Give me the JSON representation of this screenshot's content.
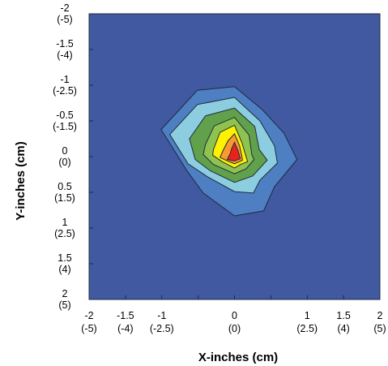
{
  "chart_data": {
    "type": "contour",
    "xlabel": "X-inches (cm)",
    "ylabel": "Y-inches (cm)",
    "xlim": [
      -2,
      2
    ],
    "ylim": [
      -2,
      2
    ],
    "y_axis_inverted": true,
    "grid": false,
    "legend": "none",
    "x_ticks": [
      {
        "value": -2,
        "inch": "-2",
        "cm": "(-5)"
      },
      {
        "value": -1.5,
        "inch": "-1.5",
        "cm": "(-4)"
      },
      {
        "value": -1,
        "inch": "-1",
        "cm": "(-2.5)"
      },
      {
        "value": -0.5,
        "inch": "",
        "cm": ""
      },
      {
        "value": 0,
        "inch": "0",
        "cm": "(0)"
      },
      {
        "value": 0.5,
        "inch": "",
        "cm": ""
      },
      {
        "value": 1,
        "inch": "1",
        "cm": "(2.5)"
      },
      {
        "value": 1.5,
        "inch": "1.5",
        "cm": "(4)"
      },
      {
        "value": 2,
        "inch": "2",
        "cm": "(5)"
      }
    ],
    "y_ticks": [
      {
        "value": -2,
        "inch": "-2",
        "cm": "(-5)"
      },
      {
        "value": -1.5,
        "inch": "-1.5",
        "cm": "(-4)"
      },
      {
        "value": -1,
        "inch": "-1",
        "cm": "(-2.5)"
      },
      {
        "value": -0.5,
        "inch": "-0.5",
        "cm": "(-1.5)"
      },
      {
        "value": 0,
        "inch": "0",
        "cm": "(0)"
      },
      {
        "value": 0.5,
        "inch": "0.5",
        "cm": "(1.5)"
      },
      {
        "value": 1,
        "inch": "1",
        "cm": "(2.5)"
      },
      {
        "value": 1.5,
        "inch": "1.5",
        "cm": "(4)"
      },
      {
        "value": 2,
        "inch": "2",
        "cm": "(5)"
      }
    ],
    "background_color": "#4059a0",
    "outline_color": "#1f2a3c",
    "contours": [
      {
        "level": 1,
        "color": "#4e7fc2",
        "points": [
          [
            -0.51,
            -0.93
          ],
          [
            0,
            -0.98
          ],
          [
            0.38,
            -0.66
          ],
          [
            0.68,
            -0.33
          ],
          [
            0.86,
            0.04
          ],
          [
            0.55,
            0.42
          ],
          [
            0.4,
            0.76
          ],
          [
            0,
            0.83
          ],
          [
            -0.43,
            0.51
          ],
          [
            -0.66,
            0.19
          ],
          [
            -1.01,
            -0.38
          ]
        ]
      },
      {
        "level": 2,
        "color": "#8ccde0",
        "points": [
          [
            -0.51,
            -0.73
          ],
          [
            0,
            -0.83
          ],
          [
            0.35,
            -0.5
          ],
          [
            0.55,
            -0.15
          ],
          [
            0.59,
            0.09
          ],
          [
            0.35,
            0.33
          ],
          [
            0.26,
            0.51
          ],
          [
            0,
            0.49
          ],
          [
            -0.36,
            0.29
          ],
          [
            -0.64,
            0.1
          ],
          [
            -0.89,
            -0.31
          ]
        ]
      },
      {
        "level": 3,
        "color": "#62a14b",
        "points": [
          [
            -0.4,
            -0.57
          ],
          [
            0,
            -0.68
          ],
          [
            0.28,
            -0.42
          ],
          [
            0.34,
            -0.1
          ],
          [
            0.45,
            0.05
          ],
          [
            0.25,
            0.27
          ],
          [
            0,
            0.36
          ],
          [
            -0.33,
            0.2
          ],
          [
            -0.54,
            0.04
          ],
          [
            -0.62,
            -0.25
          ]
        ]
      },
      {
        "level": 4,
        "color": "#8fc34f",
        "points": [
          [
            -0.28,
            -0.43
          ],
          [
            0,
            -0.55
          ],
          [
            0.2,
            -0.3
          ],
          [
            0.24,
            -0.02
          ],
          [
            0.27,
            0.04
          ],
          [
            0.16,
            0.17
          ],
          [
            0,
            0.24
          ],
          [
            -0.29,
            0.11
          ],
          [
            -0.43,
            -0.03
          ],
          [
            -0.4,
            -0.17
          ]
        ]
      },
      {
        "level": 5,
        "color": "#fff200",
        "points": [
          [
            -0.2,
            -0.34
          ],
          [
            0,
            -0.44
          ],
          [
            0.1,
            -0.2
          ],
          [
            0.15,
            -0.03
          ],
          [
            0.18,
            0.07
          ],
          [
            0.08,
            0.11
          ],
          [
            0,
            0.16
          ],
          [
            -0.17,
            0.07
          ],
          [
            -0.3,
            -0.02
          ],
          [
            -0.29,
            -0.1
          ]
        ]
      },
      {
        "level": 6,
        "color": "#f79a2f",
        "points": [
          [
            -0.09,
            -0.22
          ],
          [
            0,
            -0.32
          ],
          [
            0.07,
            -0.15
          ],
          [
            0.1,
            -0.01
          ],
          [
            0.11,
            0.05
          ],
          [
            0,
            0.1
          ],
          [
            -0.12,
            0.05
          ],
          [
            -0.2,
            0.01
          ],
          [
            -0.16,
            -0.08
          ]
        ]
      },
      {
        "level": 7,
        "color": "#e8231f",
        "points": [
          [
            -0.04,
            -0.11
          ],
          [
            0,
            -0.2
          ],
          [
            0.05,
            -0.08
          ],
          [
            0.08,
            0.03
          ],
          [
            0,
            0.06
          ],
          [
            -0.1,
            0.04
          ],
          [
            -0.06,
            -0.04
          ]
        ]
      }
    ]
  }
}
